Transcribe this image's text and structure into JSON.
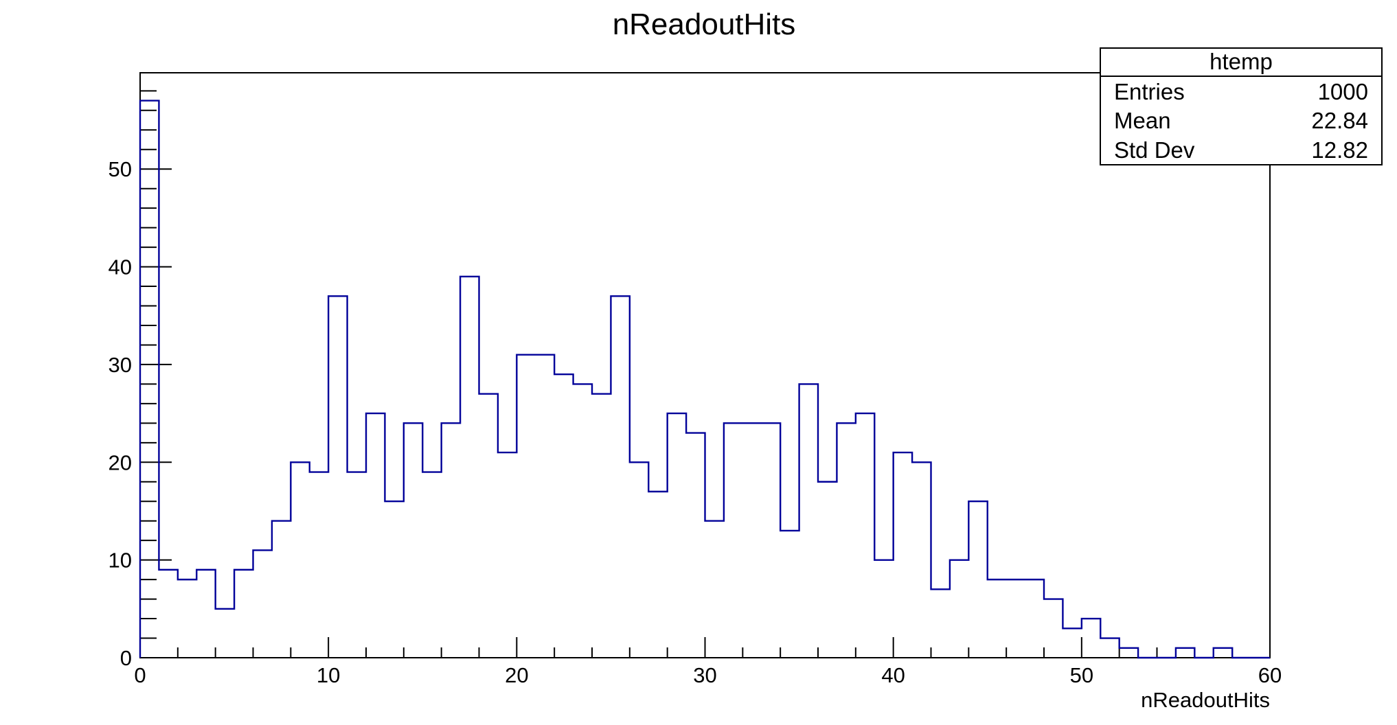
{
  "chart_data": {
    "type": "histogram",
    "title": "nReadoutHits",
    "xlabel": "nReadoutHits",
    "ylabel": "",
    "xlim": [
      0,
      60
    ],
    "ylim": [
      0,
      59.85
    ],
    "bin_width": 1,
    "x_ticks": [
      0,
      10,
      20,
      30,
      40,
      50,
      60
    ],
    "x_tick_labels": [
      "0",
      "10",
      "20",
      "30",
      "40",
      "50",
      "60"
    ],
    "y_ticks": [
      0,
      10,
      20,
      30,
      40,
      50
    ],
    "y_tick_labels": [
      "0",
      "10",
      "20",
      "30",
      "40",
      "50"
    ],
    "bin_edges_start": 0,
    "values": [
      57,
      9,
      8,
      9,
      5,
      9,
      11,
      14,
      20,
      19,
      37,
      19,
      25,
      16,
      24,
      19,
      24,
      39,
      27,
      21,
      31,
      31,
      29,
      28,
      27,
      37,
      20,
      17,
      25,
      23,
      14,
      24,
      24,
      24,
      13,
      28,
      18,
      24,
      25,
      10,
      21,
      20,
      7,
      10,
      16,
      8,
      8,
      8,
      6,
      3,
      4,
      2,
      1,
      0,
      0,
      1,
      0,
      1,
      0,
      0
    ],
    "line_color": "#000099",
    "grid": false,
    "legend": "none"
  },
  "stats_box": {
    "name": "htemp",
    "rows": [
      {
        "label": "Entries",
        "value": "1000"
      },
      {
        "label": "Mean",
        "value": "22.84"
      },
      {
        "label": "Std Dev",
        "value": "12.82"
      }
    ]
  }
}
